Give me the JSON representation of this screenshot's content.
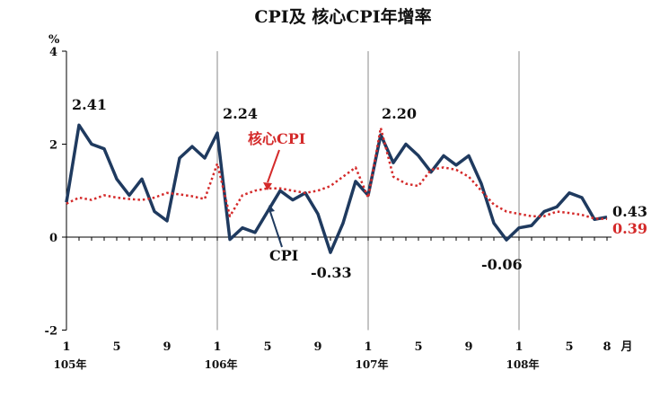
{
  "chart_data": {
    "type": "line",
    "title": "CPI及 核心CPI年增率",
    "ylabel": "%",
    "xunit": "月",
    "ylim": [
      -2,
      4
    ],
    "yticks": [
      "4",
      "2",
      "0",
      "-2"
    ],
    "month_ticks": [
      "1",
      "5",
      "9",
      "1",
      "5",
      "9",
      "1",
      "5",
      "9",
      "1",
      "5",
      "8"
    ],
    "year_labels": [
      "105年",
      "106年",
      "107年",
      "108年"
    ],
    "series": [
      {
        "name": "CPI",
        "color": "#1f3a5f",
        "values": [
          0.75,
          2.41,
          2.0,
          1.9,
          1.25,
          0.9,
          1.25,
          0.55,
          0.35,
          1.7,
          1.95,
          1.7,
          2.24,
          -0.05,
          0.2,
          0.1,
          0.55,
          1.0,
          0.8,
          0.95,
          0.5,
          -0.33,
          0.3,
          1.2,
          0.9,
          2.2,
          1.6,
          2.0,
          1.75,
          1.4,
          1.75,
          1.55,
          1.75,
          1.15,
          0.3,
          -0.06,
          0.2,
          0.25,
          0.55,
          0.65,
          0.95,
          0.85,
          0.38,
          0.43
        ]
      },
      {
        "name": "核心CPI",
        "color": "#d42a2a",
        "values": [
          0.72,
          0.85,
          0.8,
          0.9,
          0.85,
          0.82,
          0.8,
          0.85,
          0.95,
          0.92,
          0.88,
          0.82,
          1.58,
          0.45,
          0.9,
          1.0,
          1.05,
          1.05,
          1.0,
          0.95,
          1.0,
          1.1,
          1.3,
          1.5,
          0.85,
          2.35,
          1.3,
          1.15,
          1.1,
          1.45,
          1.5,
          1.45,
          1.3,
          1.0,
          0.7,
          0.55,
          0.5,
          0.45,
          0.45,
          0.55,
          0.52,
          0.48,
          0.4,
          0.39
        ]
      }
    ],
    "annotations": {
      "v1": "2.41",
      "v2": "2.24",
      "v3": "2.20",
      "v4": "-0.33",
      "v5": "-0.06",
      "v6": "0.43",
      "v7": "0.39",
      "core_label": "核心CPI",
      "cpi_label": "CPI"
    }
  }
}
